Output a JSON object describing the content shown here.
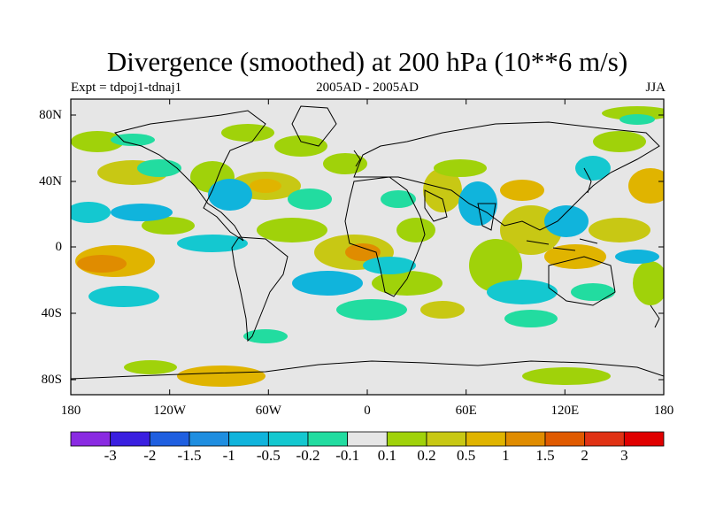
{
  "title": "Divergence (smoothed) at 200 hPa (10**6 m/s)",
  "subtitle_left": "Expt = tdpoj1-tdnaj1",
  "subtitle_center": "2005AD - 2005AD",
  "subtitle_right": "JJA",
  "lat_labels": [
    "80N",
    "40N",
    "0",
    "40S",
    "80S"
  ],
  "lon_labels": [
    "180",
    "120W",
    "60W",
    "0",
    "60E",
    "120E",
    "180"
  ],
  "colorbar": {
    "labels": [
      "-3",
      "-2",
      "-1.5",
      "-1",
      "-0.5",
      "-0.2",
      "-0.1",
      "0.1",
      "0.2",
      "0.5",
      "1",
      "1.5",
      "2",
      "3"
    ],
    "colors": [
      "#8a2be2",
      "#3a1fe0",
      "#1f5fe0",
      "#1f8ee0",
      "#10b4dc",
      "#14c8d0",
      "#22dca0",
      "#e6e6e6",
      "#a0d20a",
      "#c8c814",
      "#e0b400",
      "#e08c00",
      "#e05a00",
      "#e03214",
      "#e00000"
    ]
  },
  "colors": {
    "ocean_bg": "#e6e6e6",
    "coast": "#000000"
  }
}
